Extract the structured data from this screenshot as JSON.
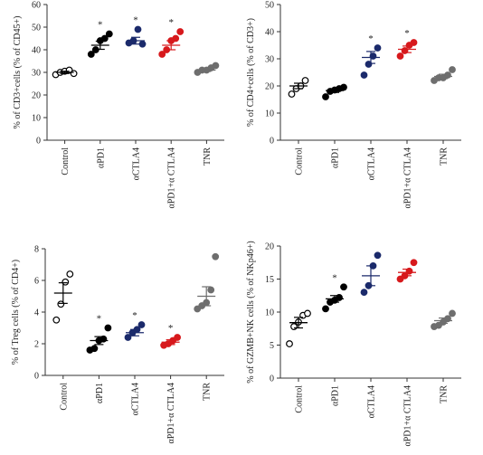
{
  "chart_data": [
    {
      "type": "dot",
      "y_label": "% of CD3+cells (% of CD45+)",
      "ylim": [
        0,
        60
      ],
      "yticks": [
        0,
        10,
        20,
        30,
        40,
        50,
        60
      ],
      "series": [
        {
          "name": "Control",
          "color": "#000000",
          "filled": false,
          "values": [
            29,
            30,
            30.5,
            31,
            29.5
          ],
          "mean": 30,
          "error": 0.5
        },
        {
          "name": "αPD1",
          "color": "#000000",
          "filled": true,
          "values": [
            38,
            40,
            44,
            45,
            47
          ],
          "mean": 42,
          "error": 1.8,
          "annotation": "*"
        },
        {
          "name": "αCTLA4",
          "color": "#1b2a6b",
          "filled": true,
          "values": [
            43,
            44,
            49,
            42.5
          ],
          "mean": 44,
          "error": 1.5,
          "annotation": "*"
        },
        {
          "name": "αPD1+α CTLA4",
          "color": "#d7191c",
          "filled": true,
          "values": [
            38,
            40,
            44,
            45,
            48
          ],
          "mean": 42,
          "error": 2,
          "annotation": "*"
        },
        {
          "name": "TNR",
          "color": "#6e6e6e",
          "filled": true,
          "values": [
            30,
            31,
            31,
            32,
            33
          ],
          "mean": 31,
          "error": 0.6
        }
      ]
    },
    {
      "type": "dot",
      "y_label": "% of CD4+cells (% of CD3+)",
      "ylim": [
        0,
        50
      ],
      "yticks": [
        0,
        10,
        20,
        30,
        40,
        50
      ],
      "series": [
        {
          "name": "Control",
          "color": "#000000",
          "filled": false,
          "values": [
            17,
            19,
            20,
            22
          ],
          "mean": 20,
          "error": 1
        },
        {
          "name": "αPD1",
          "color": "#000000",
          "filled": true,
          "values": [
            16,
            18,
            18.5,
            19,
            19.5
          ],
          "mean": 18.3,
          "error": 0.7
        },
        {
          "name": "αCTLA4",
          "color": "#1b2a6b",
          "filled": true,
          "values": [
            24,
            28,
            31,
            34
          ],
          "mean": 30.5,
          "error": 2.2,
          "annotation": "*"
        },
        {
          "name": "αPD1+α CTLA4",
          "color": "#d7191c",
          "filled": true,
          "values": [
            31,
            33,
            35,
            36
          ],
          "mean": 33.5,
          "error": 1.2,
          "annotation": "*"
        },
        {
          "name": "TNR",
          "color": "#6e6e6e",
          "filled": true,
          "values": [
            22,
            23,
            23,
            24,
            26
          ],
          "mean": 23.5,
          "error": 0.8
        }
      ]
    },
    {
      "type": "dot",
      "y_label": "% of Treg cells (% of CD4+)",
      "ylim": [
        0,
        8
      ],
      "yticks": [
        0,
        2,
        4,
        6,
        8
      ],
      "series": [
        {
          "name": "Control",
          "color": "#000000",
          "filled": false,
          "values": [
            3.5,
            4.5,
            5.9,
            6.4
          ],
          "mean": 5.2,
          "error": 0.65
        },
        {
          "name": "αPD1",
          "color": "#000000",
          "filled": true,
          "values": [
            1.6,
            1.7,
            2.2,
            2.3,
            3
          ],
          "mean": 2.2,
          "error": 0.25,
          "annotation": "*"
        },
        {
          "name": "αCTLA4",
          "color": "#1b2a6b",
          "filled": true,
          "values": [
            2.4,
            2.7,
            2.9,
            3.2
          ],
          "mean": 2.7,
          "error": 0.2,
          "annotation": "*"
        },
        {
          "name": "αPD1+α CTLA4",
          "color": "#d7191c",
          "filled": true,
          "values": [
            1.9,
            2,
            2.2,
            2.4
          ],
          "mean": 2.1,
          "error": 0.15,
          "annotation": "*"
        },
        {
          "name": "TNR",
          "color": "#6e6e6e",
          "filled": true,
          "values": [
            4.2,
            4.4,
            4.6,
            5.4,
            7.5
          ],
          "mean": 5,
          "error": 0.6
        }
      ]
    },
    {
      "type": "dot",
      "y_label": "% of GZMB+NK cells (% of NKp46+)",
      "ylim": [
        0,
        20
      ],
      "yticks": [
        0,
        5,
        10,
        15,
        20
      ],
      "series": [
        {
          "name": "Control",
          "color": "#000000",
          "filled": false,
          "values": [
            5.2,
            7.8,
            8.5,
            9.5,
            9.8
          ],
          "mean": 8.4,
          "error": 0.8
        },
        {
          "name": "αPD1",
          "color": "#000000",
          "filled": true,
          "values": [
            10.5,
            11.5,
            11.8,
            12.2,
            13.8
          ],
          "mean": 12,
          "error": 0.5,
          "annotation": "*"
        },
        {
          "name": "αCTLA4",
          "color": "#1b2a6b",
          "filled": true,
          "values": [
            13,
            14,
            17,
            18.6
          ],
          "mean": 15.5,
          "error": 1.5
        },
        {
          "name": "αPD1+α CTLA4",
          "color": "#d7191c",
          "filled": true,
          "values": [
            15,
            15.5,
            16.2,
            17.5
          ],
          "mean": 16,
          "error": 0.5
        },
        {
          "name": "TNR",
          "color": "#6e6e6e",
          "filled": true,
          "values": [
            7.8,
            8,
            8.5,
            9,
            9.8
          ],
          "mean": 8.7,
          "error": 0.4
        }
      ]
    }
  ]
}
